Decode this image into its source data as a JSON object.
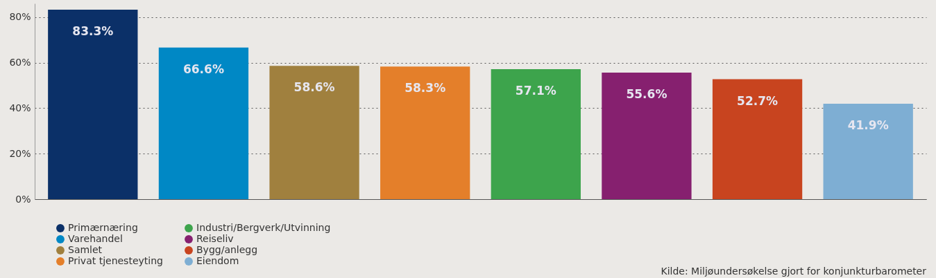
{
  "chart_data": {
    "type": "bar",
    "categories": [
      null,
      null,
      null,
      null,
      null,
      null,
      null,
      null
    ],
    "series": [
      {
        "name": "Primærnæring",
        "color": "#0b3068",
        "values": [
          83.3,
          null,
          null,
          null,
          null,
          null,
          null,
          null
        ],
        "value_labels": [
          "83.3%",
          null,
          null,
          null,
          null,
          null,
          null,
          null
        ]
      },
      {
        "name": "Varehandel",
        "color": "#0088c5",
        "values": [
          null,
          66.6,
          null,
          null,
          null,
          null,
          null,
          null
        ],
        "value_labels": [
          null,
          "66.6%",
          null,
          null,
          null,
          null,
          null,
          null
        ]
      },
      {
        "name": "Samlet",
        "color": "#a0803e",
        "values": [
          null,
          null,
          58.6,
          null,
          null,
          null,
          null,
          null
        ],
        "value_labels": [
          null,
          null,
          "58.6%",
          null,
          null,
          null,
          null,
          null
        ]
      },
      {
        "name": "Privat tjenesteyting",
        "color": "#e47f2a",
        "values": [
          null,
          null,
          null,
          58.3,
          null,
          null,
          null,
          null
        ],
        "value_labels": [
          null,
          null,
          null,
          "58.3%",
          null,
          null,
          null,
          null
        ]
      },
      {
        "name": "Industri/Bergverk/Utvinning",
        "color": "#3da44c",
        "values": [
          null,
          null,
          null,
          null,
          57.1,
          null,
          null,
          null
        ],
        "value_labels": [
          null,
          null,
          null,
          null,
          "57.1%",
          null,
          null,
          null
        ]
      },
      {
        "name": "Reiseliv",
        "color": "#86206f",
        "values": [
          null,
          null,
          null,
          null,
          null,
          55.6,
          null,
          null
        ],
        "value_labels": [
          null,
          null,
          null,
          null,
          null,
          "55.6%",
          null,
          null
        ]
      },
      {
        "name": "Bygg/anlegg",
        "color": "#c8441f",
        "values": [
          null,
          null,
          null,
          null,
          null,
          null,
          52.7,
          null
        ],
        "value_labels": [
          null,
          null,
          null,
          null,
          null,
          null,
          "52.7%",
          null
        ]
      },
      {
        "name": "Eiendom",
        "color": "#7eaed3",
        "values": [
          null,
          null,
          null,
          null,
          null,
          null,
          null,
          41.9
        ],
        "value_labels": [
          null,
          null,
          null,
          null,
          null,
          null,
          null,
          "41.9%"
        ]
      }
    ],
    "ylim": [
      0,
      86
    ],
    "yticks": [
      {
        "value": 0,
        "label": "0%"
      },
      {
        "value": 20,
        "label": "20%"
      },
      {
        "value": 40,
        "label": "40%"
      },
      {
        "value": 60,
        "label": "60%"
      },
      {
        "value": 80,
        "label": "80%"
      }
    ],
    "grid": "y",
    "legend": "bottom",
    "tick_labels": "y",
    "annotations": [
      "Kilde: Miljøundersøkelse gjort for konjunkturbarometer"
    ]
  }
}
